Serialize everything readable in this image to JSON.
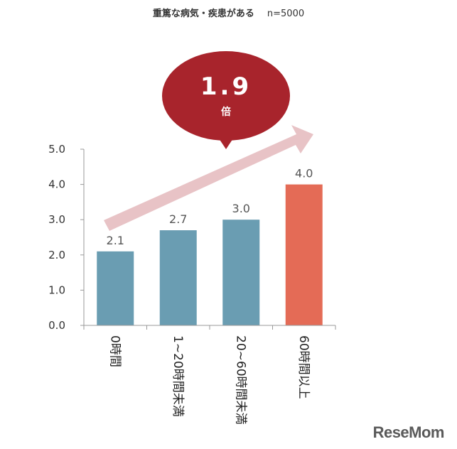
{
  "title": {
    "main": "重篤な病気・疾患がある",
    "n": "n=5000"
  },
  "callout": {
    "value": "1.9",
    "unit": "倍"
  },
  "chart_data": {
    "type": "bar",
    "categories": [
      "0時間",
      "1~20時間未満",
      "20~60時間未満",
      "60時間以上"
    ],
    "values": [
      2.1,
      2.7,
      3.0,
      4.0
    ],
    "value_labels": [
      "2.1",
      "2.7",
      "3.0",
      "4.0"
    ],
    "bar_colors": [
      "#6a9db2",
      "#6a9db2",
      "#6a9db2",
      "#e46b56"
    ],
    "ylim": [
      0,
      5
    ],
    "yticks": [
      "0.0",
      "1.0",
      "2.0",
      "3.0",
      "4.0",
      "5.0"
    ],
    "xlabel": "",
    "ylabel": "",
    "grid": false,
    "accent_color": "#a8242c",
    "arrow_color": "#e8c3c6"
  },
  "logo": "ReseMom"
}
